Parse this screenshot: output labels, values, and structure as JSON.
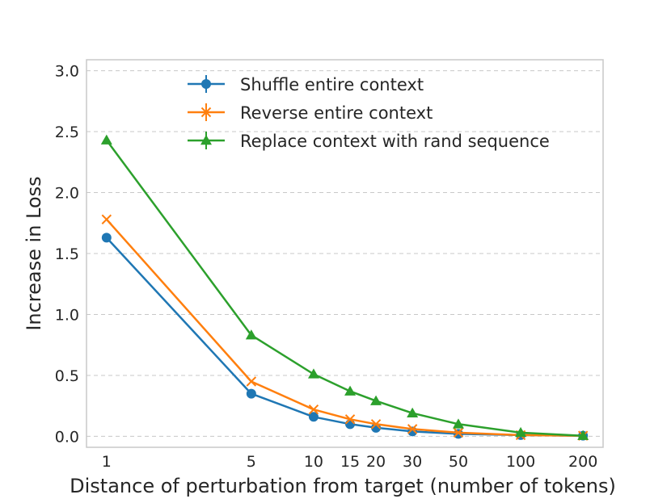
{
  "chart_data": {
    "type": "line",
    "title": "",
    "xlabel": "Distance of perturbation from target (number of tokens)",
    "ylabel": "Increase in Loss",
    "x_scale": "log",
    "x_ticks": [
      1,
      5,
      10,
      15,
      20,
      30,
      50,
      100,
      200
    ],
    "x_tick_labels": [
      "1",
      "5",
      "10",
      "15",
      "20",
      "30",
      "50",
      "100",
      "200"
    ],
    "y_ticks": [
      0.0,
      0.5,
      1.0,
      1.5,
      2.0,
      2.5,
      3.0
    ],
    "y_tick_labels": [
      "0.0",
      "0.5",
      "1.0",
      "1.5",
      "2.0",
      "2.5",
      "3.0"
    ],
    "xlim": [
      0.8,
      250
    ],
    "ylim": [
      -0.09,
      3.09
    ],
    "grid": "horizontal dashed",
    "legend_position": "top",
    "x": [
      1,
      5,
      10,
      15,
      20,
      30,
      50,
      100,
      200
    ],
    "series": [
      {
        "name": "Shuffle entire context",
        "color": "#1f77b4",
        "marker": "circle",
        "values": [
          1.63,
          0.35,
          0.16,
          0.1,
          0.07,
          0.04,
          0.02,
          0.01,
          0.005
        ]
      },
      {
        "name": "Reverse entire context",
        "color": "#ff7f0e",
        "marker": "x",
        "values": [
          1.78,
          0.45,
          0.22,
          0.14,
          0.1,
          0.06,
          0.03,
          0.01,
          0.005
        ]
      },
      {
        "name": "Replace context with rand sequence",
        "color": "#2ca02c",
        "marker": "triangle",
        "values": [
          2.43,
          0.83,
          0.51,
          0.37,
          0.29,
          0.19,
          0.1,
          0.03,
          0.005
        ]
      }
    ]
  }
}
